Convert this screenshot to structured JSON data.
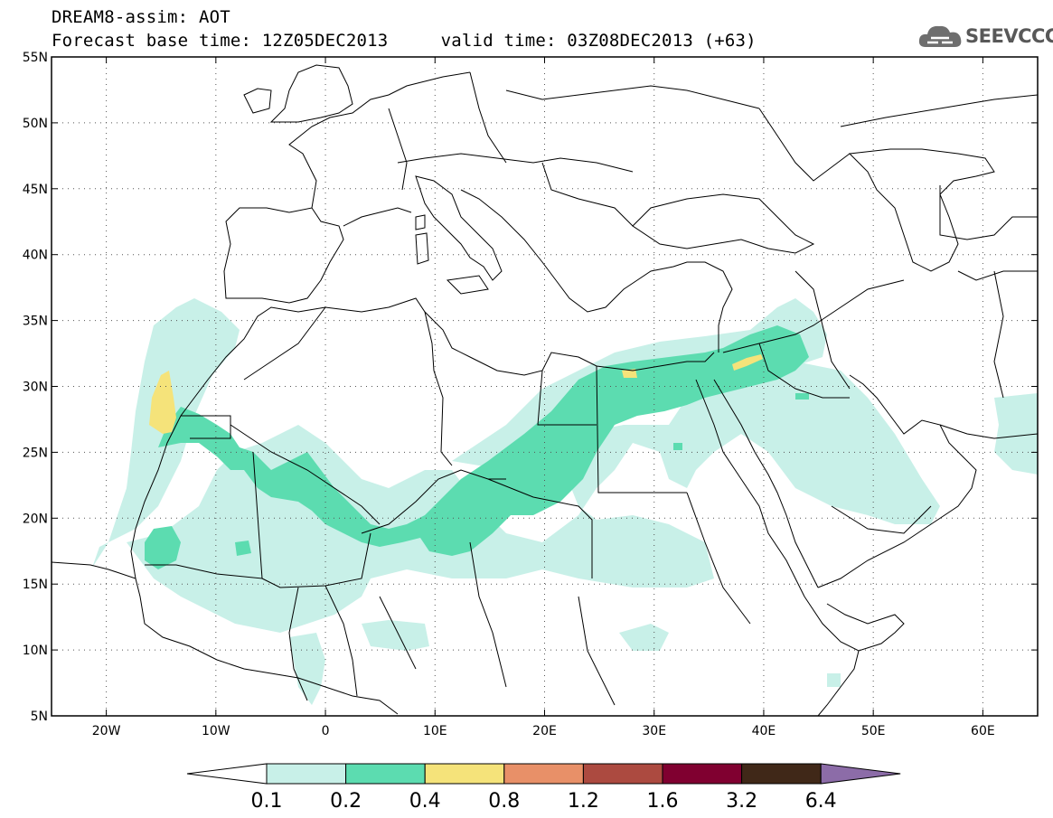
{
  "header": {
    "title_line1": "DREAM8-assim: AOT",
    "title_line2": "Forecast base time: 12Z05DEC2013     valid time: 03Z08DEC2013 (+63)"
  },
  "logo": {
    "text": "SEEVCCC",
    "icon": "cloud-logo-icon"
  },
  "map": {
    "lon_range": [
      -25,
      65
    ],
    "lat_range": [
      5,
      55
    ],
    "lat_ticks": [
      5,
      10,
      15,
      20,
      25,
      30,
      35,
      40,
      45,
      50,
      55
    ],
    "lat_labels": [
      "5N",
      "10N",
      "15N",
      "20N",
      "25N",
      "30N",
      "35N",
      "40N",
      "45N",
      "50N",
      "55N"
    ],
    "lon_ticks": [
      -20,
      -10,
      0,
      10,
      20,
      30,
      40,
      50,
      60
    ],
    "lon_labels": [
      "20W",
      "10W",
      "0",
      "10E",
      "20E",
      "30E",
      "40E",
      "50E",
      "60E"
    ],
    "gridlines": "dotted"
  },
  "colorbar": {
    "levels": [
      "0.1",
      "0.2",
      "0.4",
      "0.8",
      "1.2",
      "1.6",
      "3.2",
      "6.4"
    ],
    "colors": [
      "#ffffff",
      "#c8f0e8",
      "#5cdcb0",
      "#f5e37a",
      "#e89068",
      "#ac4a40",
      "#800030",
      "#402818",
      "#8c6ca8"
    ]
  },
  "fields": {
    "aot_0.1_color": "#c8f0e8",
    "aot_0.2_color": "#5cdcb0",
    "aot_0.4_color": "#f5e37a"
  }
}
